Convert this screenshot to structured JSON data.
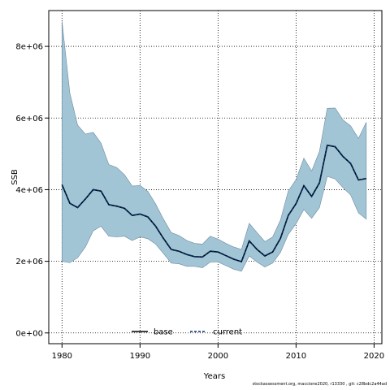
{
  "chart_data": {
    "type": "line",
    "xlabel": "Years",
    "ylabel": "SSB",
    "xlim": [
      1978.3,
      2021
    ],
    "ylim": [
      -300000,
      9000000
    ],
    "x_ticks": [
      1980,
      1990,
      2000,
      2010,
      2020
    ],
    "y_ticks": [
      0,
      2000000,
      4000000,
      6000000,
      8000000
    ],
    "x_tick_labels": [
      "1980",
      "1990",
      "2000",
      "2010",
      "2020"
    ],
    "y_tick_labels": [
      "0e+00",
      "2e+06",
      "4e+06",
      "6e+06",
      "8e+06"
    ],
    "grid": true,
    "legend_position": "bottom-center",
    "colors": {
      "band_fill": "#a2c5d6",
      "band_edge": "#6d8aa0",
      "base": "#000000",
      "current": "#00306a"
    },
    "x": [
      1980,
      1981,
      1982,
      1983,
      1984,
      1985,
      1986,
      1987,
      1988,
      1989,
      1990,
      1991,
      1992,
      1993,
      1994,
      1995,
      1996,
      1997,
      1998,
      1999,
      2000,
      2001,
      2002,
      2003,
      2004,
      2005,
      2006,
      2007,
      2008,
      2009,
      2010,
      2011,
      2012,
      2013,
      2014,
      2015,
      2016,
      2017,
      2018,
      2019
    ],
    "band_lower": [
      2000000,
      1960000,
      2100000,
      2400000,
      2850000,
      2980000,
      2700000,
      2680000,
      2700000,
      2580000,
      2680000,
      2630000,
      2480000,
      2220000,
      1950000,
      1930000,
      1860000,
      1860000,
      1820000,
      1980000,
      1980000,
      1880000,
      1780000,
      1720000,
      2150000,
      1980000,
      1840000,
      1950000,
      2250000,
      2750000,
      3050000,
      3450000,
      3200000,
      3500000,
      4370000,
      4300000,
      4060000,
      3850000,
      3350000,
      3180000
    ],
    "band_upper": [
      8700000,
      6700000,
      5800000,
      5550000,
      5600000,
      5300000,
      4700000,
      4620000,
      4420000,
      4100000,
      4120000,
      3950000,
      3600000,
      3180000,
      2800000,
      2720000,
      2580000,
      2500000,
      2480000,
      2700000,
      2620000,
      2500000,
      2400000,
      2330000,
      3060000,
      2800000,
      2550000,
      2680000,
      3150000,
      3960000,
      4280000,
      4880000,
      4520000,
      5070000,
      6270000,
      6280000,
      5950000,
      5780000,
      5430000,
      5880000
    ],
    "series": [
      {
        "name": "base",
        "values": [
          4140000,
          3620000,
          3500000,
          3740000,
          4000000,
          3960000,
          3580000,
          3540000,
          3480000,
          3280000,
          3320000,
          3240000,
          2980000,
          2640000,
          2330000,
          2280000,
          2190000,
          2130000,
          2120000,
          2280000,
          2260000,
          2160000,
          2060000,
          1990000,
          2570000,
          2330000,
          2150000,
          2260000,
          2640000,
          3280000,
          3610000,
          4110000,
          3810000,
          4190000,
          5240000,
          5200000,
          4930000,
          4730000,
          4270000,
          4310000
        ]
      },
      {
        "name": "current",
        "values": [
          4140000,
          3620000,
          3500000,
          3740000,
          4000000,
          3960000,
          3580000,
          3540000,
          3480000,
          3280000,
          3320000,
          3240000,
          2980000,
          2640000,
          2330000,
          2280000,
          2190000,
          2130000,
          2120000,
          2280000,
          2260000,
          2160000,
          2060000,
          1990000,
          2570000,
          2330000,
          2150000,
          2260000,
          2640000,
          3280000,
          3610000,
          4110000,
          3810000,
          4190000,
          5240000,
          5200000,
          4930000,
          4730000,
          4270000,
          4310000
        ]
      }
    ]
  },
  "footer_text": "stockassessment.org,  maccione2020,  r13330 ,  git:  c28bdc2a44ad"
}
